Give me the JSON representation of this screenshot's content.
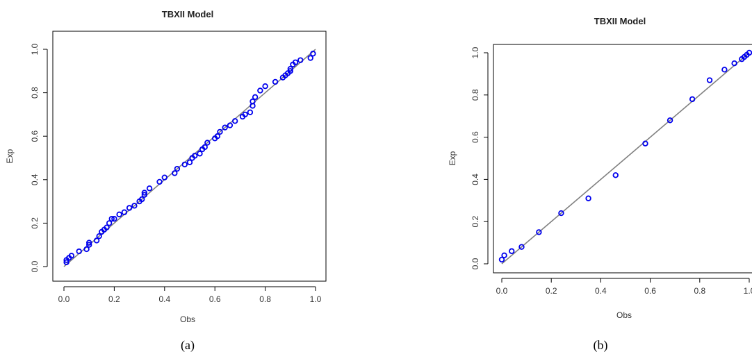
{
  "chart_data": [
    {
      "type": "scatter",
      "title": "TBXII Model",
      "xlabel": "Obs",
      "ylabel": "Exp",
      "caption": "(a)",
      "xlim": [
        0.0,
        1.0
      ],
      "ylim": [
        0.0,
        1.0
      ],
      "xticks": [
        "0.0",
        "0.2",
        "0.4",
        "0.6",
        "0.8",
        "1.0"
      ],
      "yticks": [
        "0.0",
        "0.2",
        "0.4",
        "0.6",
        "0.8",
        "1.0"
      ],
      "grid": false,
      "point_color": "#0000ee",
      "line_color": "#808080",
      "points": [
        [
          0.01,
          0.02
        ],
        [
          0.01,
          0.03
        ],
        [
          0.02,
          0.04
        ],
        [
          0.03,
          0.05
        ],
        [
          0.06,
          0.07
        ],
        [
          0.09,
          0.08
        ],
        [
          0.1,
          0.1
        ],
        [
          0.1,
          0.11
        ],
        [
          0.13,
          0.12
        ],
        [
          0.14,
          0.14
        ],
        [
          0.15,
          0.16
        ],
        [
          0.16,
          0.17
        ],
        [
          0.17,
          0.18
        ],
        [
          0.18,
          0.2
        ],
        [
          0.19,
          0.22
        ],
        [
          0.2,
          0.22
        ],
        [
          0.22,
          0.24
        ],
        [
          0.24,
          0.25
        ],
        [
          0.26,
          0.27
        ],
        [
          0.28,
          0.28
        ],
        [
          0.3,
          0.3
        ],
        [
          0.31,
          0.31
        ],
        [
          0.32,
          0.33
        ],
        [
          0.32,
          0.34
        ],
        [
          0.34,
          0.36
        ],
        [
          0.38,
          0.39
        ],
        [
          0.4,
          0.41
        ],
        [
          0.44,
          0.43
        ],
        [
          0.45,
          0.45
        ],
        [
          0.48,
          0.47
        ],
        [
          0.5,
          0.48
        ],
        [
          0.51,
          0.5
        ],
        [
          0.52,
          0.51
        ],
        [
          0.54,
          0.52
        ],
        [
          0.55,
          0.54
        ],
        [
          0.56,
          0.55
        ],
        [
          0.57,
          0.57
        ],
        [
          0.6,
          0.59
        ],
        [
          0.61,
          0.6
        ],
        [
          0.62,
          0.62
        ],
        [
          0.64,
          0.64
        ],
        [
          0.66,
          0.65
        ],
        [
          0.68,
          0.67
        ],
        [
          0.71,
          0.69
        ],
        [
          0.72,
          0.7
        ],
        [
          0.74,
          0.71
        ],
        [
          0.75,
          0.74
        ],
        [
          0.75,
          0.76
        ],
        [
          0.76,
          0.78
        ],
        [
          0.78,
          0.81
        ],
        [
          0.8,
          0.83
        ],
        [
          0.84,
          0.85
        ],
        [
          0.87,
          0.87
        ],
        [
          0.88,
          0.88
        ],
        [
          0.89,
          0.89
        ],
        [
          0.9,
          0.9
        ],
        [
          0.9,
          0.91
        ],
        [
          0.91,
          0.93
        ],
        [
          0.92,
          0.94
        ],
        [
          0.94,
          0.95
        ],
        [
          0.98,
          0.96
        ],
        [
          0.99,
          0.98
        ]
      ]
    },
    {
      "type": "scatter",
      "title": "TBXII Model",
      "xlabel": "Obs",
      "ylabel": "Exp",
      "caption": "(b)",
      "xlim": [
        0.0,
        1.0
      ],
      "ylim": [
        0.0,
        1.0
      ],
      "xticks": [
        "0.0",
        "0.2",
        "0.4",
        "0.6",
        "0.8",
        "1.0"
      ],
      "yticks": [
        "0.0",
        "0.2",
        "0.4",
        "0.6",
        "0.8",
        "1.0"
      ],
      "grid": false,
      "point_color": "#0000ee",
      "line_color": "#808080",
      "points": [
        [
          0.0,
          0.02
        ],
        [
          0.01,
          0.04
        ],
        [
          0.04,
          0.06
        ],
        [
          0.08,
          0.08
        ],
        [
          0.15,
          0.15
        ],
        [
          0.24,
          0.24
        ],
        [
          0.35,
          0.31
        ],
        [
          0.46,
          0.42
        ],
        [
          0.58,
          0.57
        ],
        [
          0.68,
          0.68
        ],
        [
          0.77,
          0.78
        ],
        [
          0.84,
          0.87
        ],
        [
          0.9,
          0.92
        ],
        [
          0.94,
          0.95
        ],
        [
          0.97,
          0.97
        ],
        [
          0.98,
          0.98
        ],
        [
          0.99,
          0.99
        ],
        [
          1.0,
          1.0
        ]
      ]
    }
  ]
}
